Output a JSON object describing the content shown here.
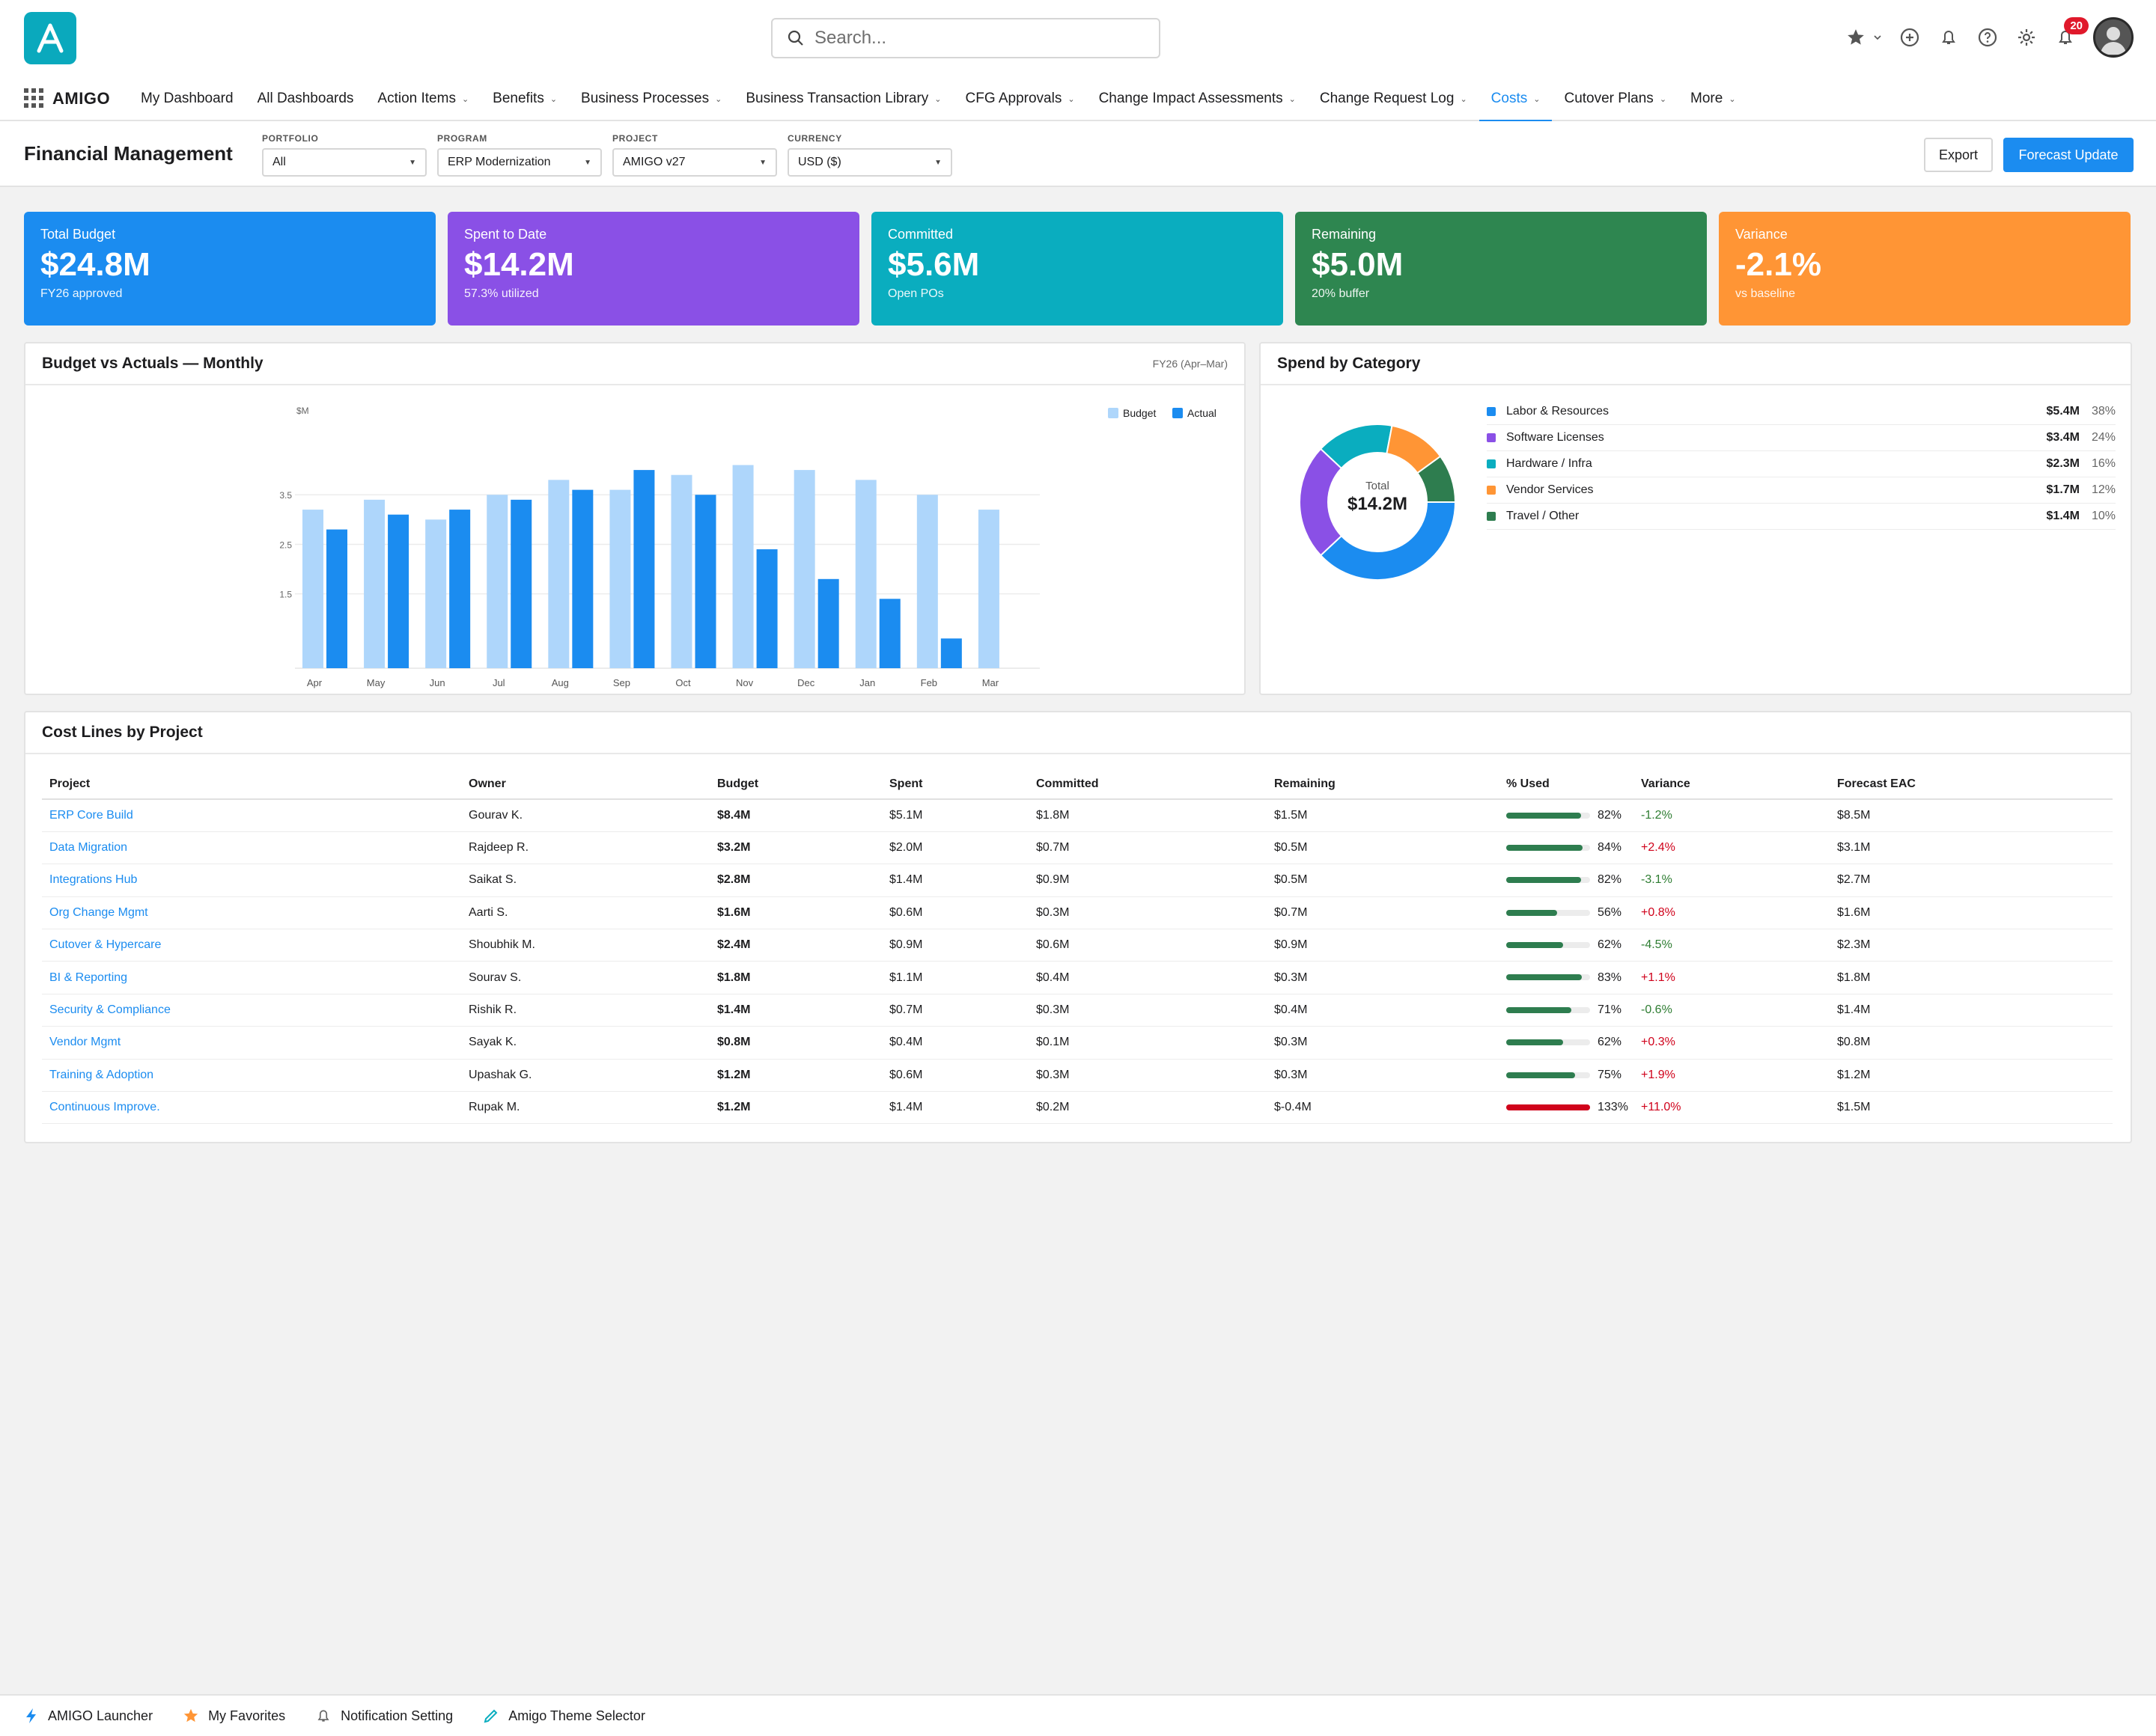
{
  "app": {
    "brand": "AMIGO",
    "logo_letter": "A"
  },
  "search": {
    "placeholder": "Search..."
  },
  "notifications": {
    "count": "20"
  },
  "nav": {
    "items": [
      {
        "label": "My Dashboard",
        "caret": false
      },
      {
        "label": "All Dashboards",
        "caret": false
      },
      {
        "label": "Action Items",
        "caret": true
      },
      {
        "label": "Benefits",
        "caret": true
      },
      {
        "label": "Business Processes",
        "caret": true
      },
      {
        "label": "Business Transaction Library",
        "caret": true
      },
      {
        "label": "CFG Approvals",
        "caret": true
      },
      {
        "label": "Change Impact Assessments",
        "caret": true
      },
      {
        "label": "Change Request Log",
        "caret": true
      },
      {
        "label": "Costs",
        "caret": true,
        "active": true
      },
      {
        "label": "Cutover Plans",
        "caret": true
      },
      {
        "label": "More",
        "caret": true
      }
    ]
  },
  "page": {
    "title": "Financial Management",
    "filters": [
      {
        "label": "PORTFOLIO",
        "value": "All"
      },
      {
        "label": "PROGRAM",
        "value": "ERP Modernization"
      },
      {
        "label": "PROJECT",
        "value": "AMIGO v27"
      },
      {
        "label": "CURRENCY",
        "value": "USD ($)"
      }
    ],
    "export_label": "Export",
    "forecast_label": "Forecast Update"
  },
  "kpis": [
    {
      "label": "Total Budget",
      "value": "$24.8M",
      "sub": "FY26 approved",
      "color": "#1b8cf0"
    },
    {
      "label": "Spent to Date",
      "value": "$14.2M",
      "sub": "57.3% utilized",
      "color": "#8a50e6"
    },
    {
      "label": "Committed",
      "value": "$5.6M",
      "sub": "Open POs",
      "color": "#0aadbf"
    },
    {
      "label": "Remaining",
      "value": "$5.0M",
      "sub": "20% buffer",
      "color": "#2e8650"
    },
    {
      "label": "Variance",
      "value": "-2.1%",
      "sub": "vs baseline",
      "color": "#ff9535"
    }
  ],
  "budget_panel": {
    "title": "Budget vs Actuals — Monthly",
    "meta": "FY26 (Apr–Mar)"
  },
  "chart_data": {
    "type": "bar",
    "ylabel": "$M",
    "ytick_labels": [
      "3.5",
      "2.5",
      "1.5"
    ],
    "ylim": [
      0,
      4.5
    ],
    "grid": true,
    "legend_position": "top-right",
    "categories": [
      "Apr",
      "May",
      "Jun",
      "Jul",
      "Aug",
      "Sep",
      "Oct",
      "Nov",
      "Dec",
      "Jan",
      "Feb",
      "Mar"
    ],
    "series": [
      {
        "name": "Budget",
        "color": "#aed6fb",
        "values": [
          3.2,
          3.4,
          3.0,
          3.5,
          3.8,
          3.6,
          3.9,
          4.1,
          4.0,
          3.8,
          3.5,
          3.2
        ]
      },
      {
        "name": "Actual",
        "color": "#1b8cf0",
        "values": [
          2.8,
          3.1,
          3.2,
          3.4,
          3.6,
          4.0,
          3.5,
          2.4,
          1.8,
          1.4,
          0.6,
          null
        ]
      }
    ]
  },
  "spend_panel": {
    "title": "Spend by Category",
    "total_label": "Total",
    "total_value": "$14.2M",
    "categories": [
      {
        "name": "Labor & Resources",
        "amount": "$5.4M",
        "pct": "38%",
        "share": 38,
        "color": "#1b8cf0"
      },
      {
        "name": "Software Licenses",
        "amount": "$3.4M",
        "pct": "24%",
        "share": 24,
        "color": "#8a50e6"
      },
      {
        "name": "Hardware / Infra",
        "amount": "$2.3M",
        "pct": "16%",
        "share": 16,
        "color": "#0aadbf"
      },
      {
        "name": "Vendor Services",
        "amount": "$1.7M",
        "pct": "12%",
        "share": 12,
        "color": "#ff9535"
      },
      {
        "name": "Travel / Other",
        "amount": "$1.4M",
        "pct": "10%",
        "share": 10,
        "color": "#2e7d4f"
      }
    ]
  },
  "cost_table": {
    "title": "Cost Lines by Project",
    "columns": [
      "Project",
      "Owner",
      "Budget",
      "Spent",
      "Committed",
      "Remaining",
      "% Used",
      "Variance",
      "Forecast EAC"
    ],
    "rows": [
      {
        "project": "ERP Core Build",
        "owner": "Gourav K.",
        "budget": "$8.4M",
        "spent": "$5.1M",
        "committed": "$1.8M",
        "remaining": "$1.5M",
        "used": "82%",
        "used_pct": 82,
        "variance": "-1.2%",
        "eac": "$8.5M"
      },
      {
        "project": "Data Migration",
        "owner": "Rajdeep R.",
        "budget": "$3.2M",
        "spent": "$2.0M",
        "committed": "$0.7M",
        "remaining": "$0.5M",
        "used": "84%",
        "used_pct": 84,
        "variance": "+2.4%",
        "eac": "$3.1M"
      },
      {
        "project": "Integrations Hub",
        "owner": "Saikat S.",
        "budget": "$2.8M",
        "spent": "$1.4M",
        "committed": "$0.9M",
        "remaining": "$0.5M",
        "used": "82%",
        "used_pct": 82,
        "variance": "-3.1%",
        "eac": "$2.7M"
      },
      {
        "project": "Org Change Mgmt",
        "owner": "Aarti S.",
        "budget": "$1.6M",
        "spent": "$0.6M",
        "committed": "$0.3M",
        "remaining": "$0.7M",
        "used": "56%",
        "used_pct": 56,
        "variance": "+0.8%",
        "eac": "$1.6M"
      },
      {
        "project": "Cutover & Hypercare",
        "owner": "Shoubhik M.",
        "budget": "$2.4M",
        "spent": "$0.9M",
        "committed": "$0.6M",
        "remaining": "$0.9M",
        "used": "62%",
        "used_pct": 62,
        "variance": "-4.5%",
        "eac": "$2.3M"
      },
      {
        "project": "BI & Reporting",
        "owner": "Sourav S.",
        "budget": "$1.8M",
        "spent": "$1.1M",
        "committed": "$0.4M",
        "remaining": "$0.3M",
        "used": "83%",
        "used_pct": 83,
        "variance": "+1.1%",
        "eac": "$1.8M"
      },
      {
        "project": "Security & Compliance",
        "owner": "Rishik R.",
        "budget": "$1.4M",
        "spent": "$0.7M",
        "committed": "$0.3M",
        "remaining": "$0.4M",
        "used": "71%",
        "used_pct": 71,
        "variance": "-0.6%",
        "eac": "$1.4M"
      },
      {
        "project": "Vendor Mgmt",
        "owner": "Sayak K.",
        "budget": "$0.8M",
        "spent": "$0.4M",
        "committed": "$0.1M",
        "remaining": "$0.3M",
        "used": "62%",
        "used_pct": 62,
        "variance": "+0.3%",
        "eac": "$0.8M"
      },
      {
        "project": "Training & Adoption",
        "owner": "Upashak G.",
        "budget": "$1.2M",
        "spent": "$0.6M",
        "committed": "$0.3M",
        "remaining": "$0.3M",
        "used": "75%",
        "used_pct": 75,
        "variance": "+1.9%",
        "eac": "$1.2M"
      },
      {
        "project": "Continuous Improve.",
        "owner": "Rupak M.",
        "budget": "$1.2M",
        "spent": "$1.4M",
        "committed": "$0.2M",
        "remaining": "$-0.4M",
        "used": "133%",
        "used_pct": 133,
        "variance": "+11.0%",
        "eac": "$1.5M"
      }
    ]
  },
  "footer": {
    "items": [
      {
        "label": "AMIGO Launcher",
        "icon": "lightning-icon"
      },
      {
        "label": "My Favorites",
        "icon": "star-icon"
      },
      {
        "label": "Notification Setting",
        "icon": "bell-icon"
      },
      {
        "label": "Amigo Theme Selector",
        "icon": "brush-icon"
      }
    ]
  }
}
